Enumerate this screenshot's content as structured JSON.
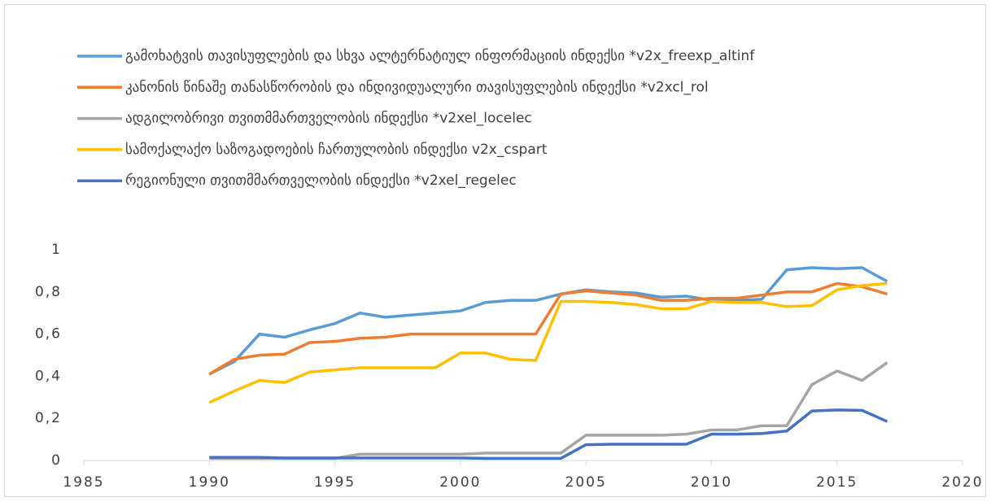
{
  "chart_data": {
    "type": "line",
    "x": [
      1990,
      1991,
      1992,
      1993,
      1994,
      1995,
      1996,
      1997,
      1998,
      1999,
      2000,
      2001,
      2002,
      2003,
      2004,
      2005,
      2006,
      2007,
      2008,
      2009,
      2010,
      2011,
      2012,
      2013,
      2014,
      2015,
      2016,
      2017
    ],
    "series": [
      {
        "name": "გამოხატვის თავისუფლების და სხვა ალტერნატიულ ინფორმაციის ინდექსი *v2x_freexp_altinf",
        "color": "#5b9bd5",
        "values": [
          0.41,
          0.47,
          0.6,
          0.585,
          0.62,
          0.65,
          0.7,
          0.68,
          0.69,
          0.7,
          0.71,
          0.75,
          0.76,
          0.76,
          0.79,
          0.81,
          0.8,
          0.795,
          0.775,
          0.78,
          0.76,
          0.76,
          0.765,
          0.905,
          0.915,
          0.91,
          0.915,
          0.85
        ]
      },
      {
        "name": "კანონის წინაშე თანასწორობის და ინდივიდუალური თავისუფლების ინდექსი *v2xcl_rol",
        "color": "#ed7d31",
        "values": [
          0.41,
          0.48,
          0.5,
          0.505,
          0.56,
          0.565,
          0.58,
          0.585,
          0.6,
          0.6,
          0.6,
          0.6,
          0.6,
          0.6,
          0.79,
          0.805,
          0.795,
          0.785,
          0.76,
          0.76,
          0.77,
          0.77,
          0.785,
          0.8,
          0.8,
          0.84,
          0.825,
          0.79
        ]
      },
      {
        "name": "ადგილობრივი თვითმმართველობის ინდექსი *v2xel_locelec",
        "color": "#a5a5a5",
        "values": [
          0.01,
          0.01,
          0.01,
          0.01,
          0.01,
          0.01,
          0.03,
          0.03,
          0.03,
          0.03,
          0.03,
          0.035,
          0.035,
          0.035,
          0.035,
          0.12,
          0.12,
          0.12,
          0.12,
          0.125,
          0.145,
          0.145,
          0.165,
          0.165,
          0.36,
          0.425,
          0.38,
          0.465
        ]
      },
      {
        "name": "სამოქალაქო საზოგადოების ჩართულობის ინდექსი v2x_cspart",
        "color": "#ffc000",
        "values": [
          0.275,
          0.33,
          0.38,
          0.37,
          0.42,
          0.43,
          0.44,
          0.44,
          0.44,
          0.44,
          0.51,
          0.51,
          0.48,
          0.475,
          0.755,
          0.755,
          0.75,
          0.74,
          0.72,
          0.72,
          0.755,
          0.75,
          0.75,
          0.73,
          0.735,
          0.81,
          0.83,
          0.84
        ]
      },
      {
        "name": "რეგიონული თვითმმართველობის ინდექსი *v2xel_regelec",
        "color": "#4472c4",
        "values": [
          0.015,
          0.015,
          0.015,
          0.012,
          0.012,
          0.012,
          0.012,
          0.012,
          0.012,
          0.012,
          0.012,
          0.01,
          0.01,
          0.01,
          0.01,
          0.075,
          0.077,
          0.077,
          0.077,
          0.077,
          0.125,
          0.125,
          0.128,
          0.14,
          0.235,
          0.24,
          0.238,
          0.185
        ]
      }
    ],
    "xlim": [
      1985,
      2020
    ],
    "xticks": [
      1985,
      1990,
      1995,
      2000,
      2005,
      2010,
      2015,
      2020
    ],
    "ylim": [
      0,
      1
    ],
    "yticks": [
      0,
      {
        "value": 0.2,
        "label": "0,2"
      },
      {
        "value": 0.4,
        "label": "0,4"
      },
      {
        "value": 0.6,
        "label": "0,6"
      },
      {
        "value": 0.8,
        "label": "0,8"
      },
      1
    ],
    "legend": "top"
  }
}
